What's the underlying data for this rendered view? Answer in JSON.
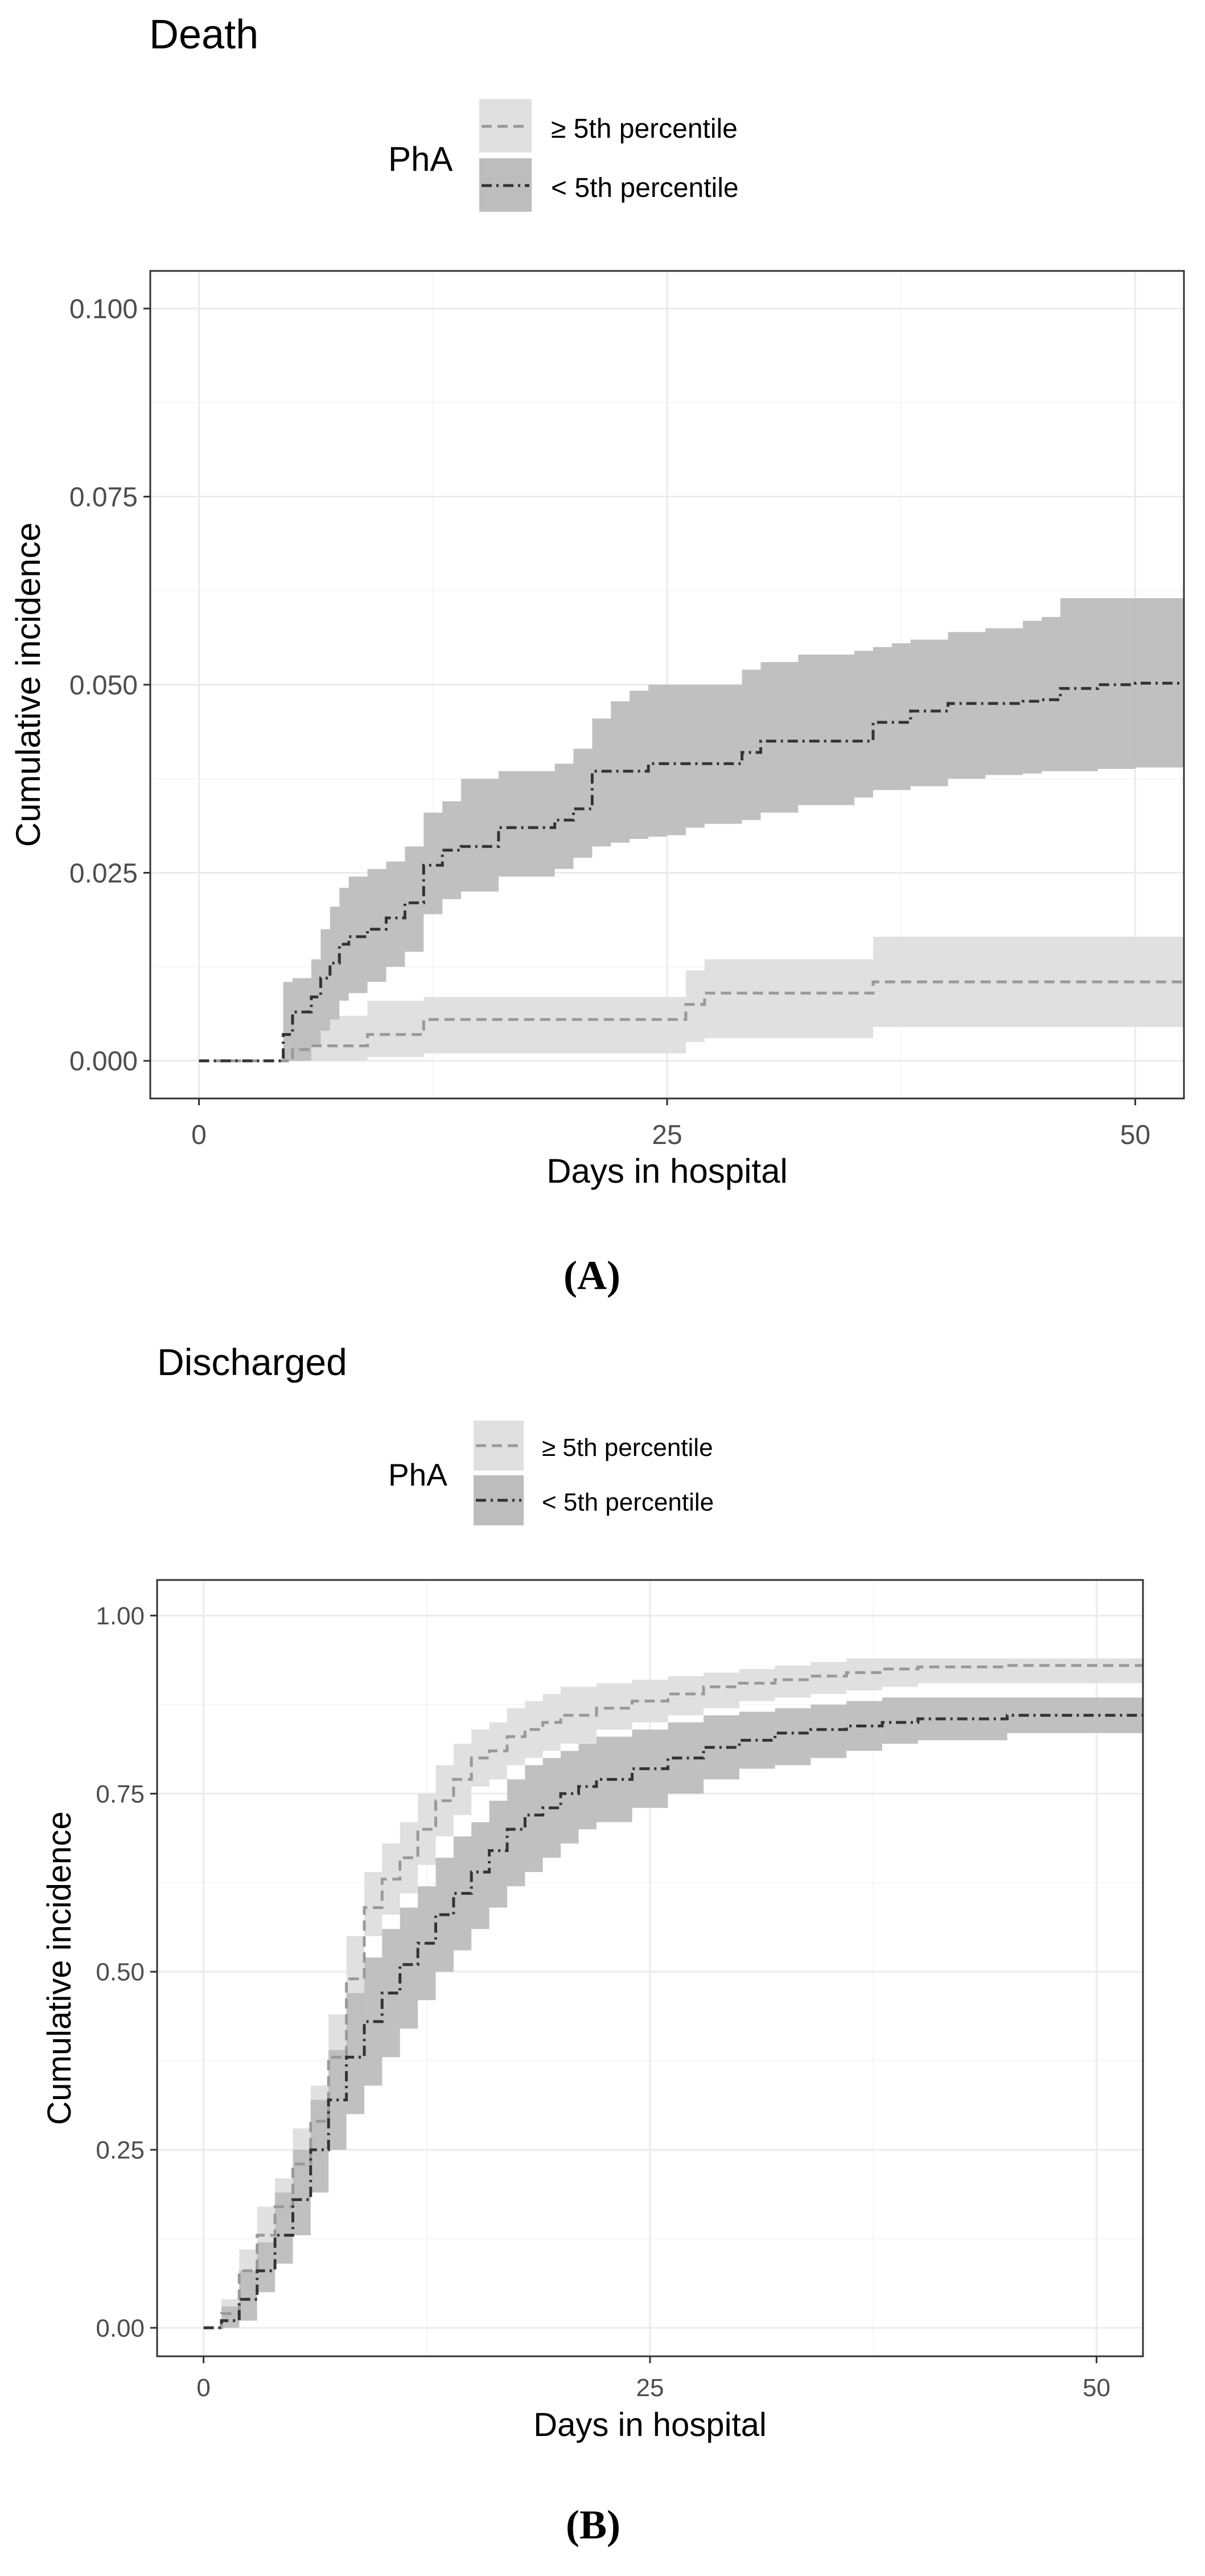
{
  "colors": {
    "ge_band": "#e0e0e0",
    "ge_line": "#999999",
    "lt_band": "#bdbdbd",
    "lt_line": "#333333",
    "grid_major": "#ebebeb",
    "grid_minor": "#f5f5f5",
    "panel_border": "#333333"
  },
  "chart_data": [
    {
      "type": "line",
      "panel": "A",
      "caption_letter": "A",
      "title": "Death",
      "xlabel": "Days in hospital",
      "ylabel": "Cumulative incidence",
      "xlim": [
        -2.6,
        52.6
      ],
      "ylim": [
        -0.005,
        0.105
      ],
      "xticks": [
        0,
        25,
        50
      ],
      "xtick_labels": [
        "0",
        "25",
        "50"
      ],
      "yticks": [
        0,
        0.025,
        0.05,
        0.075,
        0.1
      ],
      "ytick_labels": [
        "0.000",
        "0.025",
        "0.050",
        "0.075",
        "0.100"
      ],
      "legend_title": "PhA",
      "legend_position": "top",
      "series": [
        {
          "key": "ge",
          "name": "≥ 5th percentile",
          "x": [
            0,
            4,
            5,
            6,
            9,
            12,
            20,
            26,
            27,
            30,
            36,
            40,
            52.6
          ],
          "y": [
            0,
            0,
            0.0015,
            0.002,
            0.0035,
            0.0055,
            0.0055,
            0.0075,
            0.009,
            0.009,
            0.0105,
            0.0105,
            0.0105
          ],
          "lower": [
            0,
            0,
            0,
            0,
            0.0005,
            0.001,
            0.001,
            0.0025,
            0.003,
            0.003,
            0.0045,
            0.0045,
            0.0045
          ],
          "upper": [
            0,
            0,
            0.004,
            0.006,
            0.008,
            0.0085,
            0.0085,
            0.012,
            0.0135,
            0.0135,
            0.0165,
            0.0165,
            0.0165
          ]
        },
        {
          "key": "lt",
          "name": "< 5th percentile",
          "x": [
            0,
            4,
            4.5,
            5,
            6,
            6.5,
            7,
            7.5,
            8,
            9,
            10,
            11,
            12,
            13,
            14,
            15,
            16,
            17,
            18,
            19,
            20,
            21,
            22,
            23,
            24,
            25,
            26,
            27,
            29,
            30,
            32,
            33,
            35,
            36,
            37,
            38,
            40,
            42,
            44,
            45,
            46,
            48,
            50,
            52.6
          ],
          "y": [
            0,
            0,
            0.0035,
            0.0065,
            0.0085,
            0.011,
            0.013,
            0.0155,
            0.0165,
            0.0175,
            0.019,
            0.021,
            0.026,
            0.028,
            0.0285,
            0.0285,
            0.031,
            0.031,
            0.031,
            0.032,
            0.0335,
            0.0385,
            0.0385,
            0.0385,
            0.0395,
            0.0395,
            0.0395,
            0.0395,
            0.041,
            0.0425,
            0.0425,
            0.0425,
            0.0425,
            0.045,
            0.045,
            0.0465,
            0.0475,
            0.0475,
            0.0478,
            0.048,
            0.0495,
            0.05,
            0.0502,
            0.0502
          ],
          "lower": [
            0,
            0,
            0,
            0,
            0.002,
            0.004,
            0.0055,
            0.008,
            0.009,
            0.0105,
            0.0125,
            0.0145,
            0.0195,
            0.0215,
            0.0225,
            0.0225,
            0.0245,
            0.0245,
            0.0245,
            0.0255,
            0.027,
            0.0285,
            0.029,
            0.0295,
            0.0298,
            0.03,
            0.031,
            0.0315,
            0.032,
            0.033,
            0.034,
            0.034,
            0.035,
            0.036,
            0.036,
            0.0365,
            0.0375,
            0.038,
            0.0382,
            0.0385,
            0.0385,
            0.0388,
            0.039,
            0.039
          ],
          "upper": [
            0,
            0,
            0.0105,
            0.011,
            0.0135,
            0.0175,
            0.0205,
            0.023,
            0.0245,
            0.0255,
            0.0265,
            0.0285,
            0.033,
            0.0345,
            0.0375,
            0.0375,
            0.0385,
            0.0385,
            0.0385,
            0.0395,
            0.0415,
            0.0455,
            0.0478,
            0.0492,
            0.05,
            0.05,
            0.05,
            0.05,
            0.052,
            0.053,
            0.054,
            0.054,
            0.0545,
            0.055,
            0.0555,
            0.056,
            0.057,
            0.0575,
            0.0585,
            0.059,
            0.0615,
            0.0615,
            0.0615,
            0.0615
          ]
        }
      ]
    },
    {
      "type": "line",
      "panel": "B",
      "caption_letter": "B",
      "title": "Discharged",
      "xlabel": "Days in hospital",
      "ylabel": "Cumulative incidence",
      "xlim": [
        -2.6,
        52.6
      ],
      "ylim": [
        -0.04,
        1.05
      ],
      "xticks": [
        0,
        25,
        50
      ],
      "xtick_labels": [
        "0",
        "25",
        "50"
      ],
      "yticks": [
        0,
        0.25,
        0.5,
        0.75,
        1.0
      ],
      "ytick_labels": [
        "0.00",
        "0.25",
        "0.50",
        "0.75",
        "1.00"
      ],
      "legend_title": "PhA",
      "legend_position": "top",
      "series": [
        {
          "key": "ge",
          "name": "≥ 5th percentile",
          "x": [
            0,
            1,
            2,
            3,
            4,
            5,
            6,
            7,
            8,
            9,
            10,
            11,
            12,
            13,
            14,
            15,
            16,
            17,
            18,
            19,
            20,
            22,
            24,
            26,
            28,
            30,
            32,
            34,
            36,
            38,
            40,
            45,
            52.6
          ],
          "y": [
            0,
            0.02,
            0.08,
            0.13,
            0.17,
            0.23,
            0.29,
            0.38,
            0.49,
            0.59,
            0.63,
            0.66,
            0.7,
            0.74,
            0.77,
            0.8,
            0.81,
            0.83,
            0.84,
            0.85,
            0.86,
            0.87,
            0.88,
            0.89,
            0.9,
            0.905,
            0.91,
            0.915,
            0.92,
            0.925,
            0.928,
            0.93,
            0.93
          ],
          "lower": [
            0,
            0.005,
            0.05,
            0.09,
            0.13,
            0.18,
            0.24,
            0.32,
            0.43,
            0.55,
            0.58,
            0.61,
            0.65,
            0.69,
            0.72,
            0.76,
            0.77,
            0.79,
            0.8,
            0.81,
            0.82,
            0.84,
            0.85,
            0.86,
            0.87,
            0.88,
            0.885,
            0.89,
            0.895,
            0.9,
            0.905,
            0.905,
            0.905
          ],
          "upper": [
            0,
            0.04,
            0.11,
            0.17,
            0.21,
            0.28,
            0.34,
            0.44,
            0.55,
            0.64,
            0.68,
            0.71,
            0.75,
            0.79,
            0.82,
            0.84,
            0.85,
            0.87,
            0.88,
            0.89,
            0.9,
            0.905,
            0.91,
            0.915,
            0.92,
            0.925,
            0.93,
            0.935,
            0.94,
            0.94,
            0.94,
            0.94,
            0.94
          ]
        },
        {
          "key": "lt",
          "name": "< 5th percentile",
          "x": [
            0,
            1,
            2,
            3,
            4,
            5,
            6,
            7,
            8,
            9,
            10,
            11,
            12,
            13,
            14,
            15,
            16,
            17,
            18,
            19,
            20,
            21,
            22,
            24,
            26,
            28,
            30,
            32,
            34,
            36,
            38,
            40,
            45,
            52.6
          ],
          "y": [
            0,
            0.01,
            0.04,
            0.08,
            0.13,
            0.18,
            0.25,
            0.32,
            0.38,
            0.43,
            0.47,
            0.51,
            0.54,
            0.58,
            0.61,
            0.64,
            0.67,
            0.7,
            0.72,
            0.73,
            0.75,
            0.76,
            0.77,
            0.785,
            0.8,
            0.815,
            0.825,
            0.835,
            0.84,
            0.845,
            0.85,
            0.855,
            0.86,
            0.86
          ],
          "lower": [
            0,
            0,
            0.01,
            0.05,
            0.09,
            0.13,
            0.19,
            0.25,
            0.3,
            0.34,
            0.38,
            0.42,
            0.46,
            0.5,
            0.53,
            0.56,
            0.59,
            0.62,
            0.64,
            0.66,
            0.68,
            0.7,
            0.71,
            0.73,
            0.75,
            0.77,
            0.785,
            0.79,
            0.8,
            0.81,
            0.82,
            0.825,
            0.835,
            0.835
          ],
          "upper": [
            0,
            0.03,
            0.08,
            0.12,
            0.19,
            0.25,
            0.32,
            0.39,
            0.47,
            0.52,
            0.56,
            0.59,
            0.62,
            0.66,
            0.69,
            0.71,
            0.74,
            0.77,
            0.79,
            0.8,
            0.81,
            0.82,
            0.83,
            0.84,
            0.85,
            0.86,
            0.865,
            0.87,
            0.875,
            0.88,
            0.885,
            0.885,
            0.885,
            0.885
          ]
        }
      ]
    }
  ]
}
